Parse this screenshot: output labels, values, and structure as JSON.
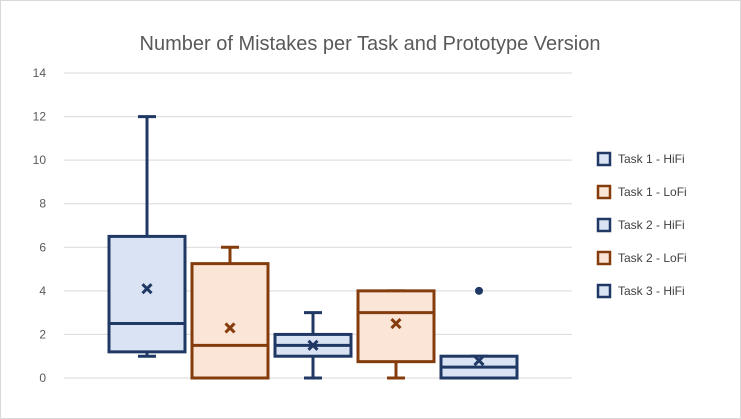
{
  "chart_data": {
    "type": "box",
    "title": "Number of Mistakes per Task and Prototype Version",
    "ylim": [
      0,
      14
    ],
    "yticks": [
      0,
      2,
      4,
      6,
      8,
      10,
      12,
      14
    ],
    "grid": true,
    "legend_position": "right",
    "series": [
      {
        "name": "Task 1 - HiFi",
        "stroke": "#1f3864",
        "fill": "#dae3f3",
        "min": 1,
        "q1": 1.2,
        "median": 2.5,
        "q3": 6.5,
        "max": 12,
        "mean": 4.1,
        "outliers": []
      },
      {
        "name": "Task 1 - LoFi",
        "stroke": "#843c0c",
        "fill": "#fbe5d6",
        "min": 0,
        "q1": 0,
        "median": 1.5,
        "q3": 5.25,
        "max": 6,
        "mean": 2.3,
        "outliers": []
      },
      {
        "name": "Task 2 - HiFi",
        "stroke": "#1f3864",
        "fill": "#dae3f3",
        "min": 0,
        "q1": 1,
        "median": 1.5,
        "q3": 2,
        "max": 3,
        "mean": 1.5,
        "outliers": []
      },
      {
        "name": "Task 2 - LoFi",
        "stroke": "#843c0c",
        "fill": "#fbe5d6",
        "min": 0,
        "q1": 0.75,
        "median": 3,
        "q3": 4,
        "max": 4,
        "mean": 2.5,
        "outliers": []
      },
      {
        "name": "Task 3 - HiFi",
        "stroke": "#1f3864",
        "fill": "#dae3f3",
        "min": 0,
        "q1": 0,
        "median": 0.5,
        "q3": 1,
        "max": 1,
        "mean": 0.8,
        "outliers": [
          4
        ]
      }
    ]
  }
}
